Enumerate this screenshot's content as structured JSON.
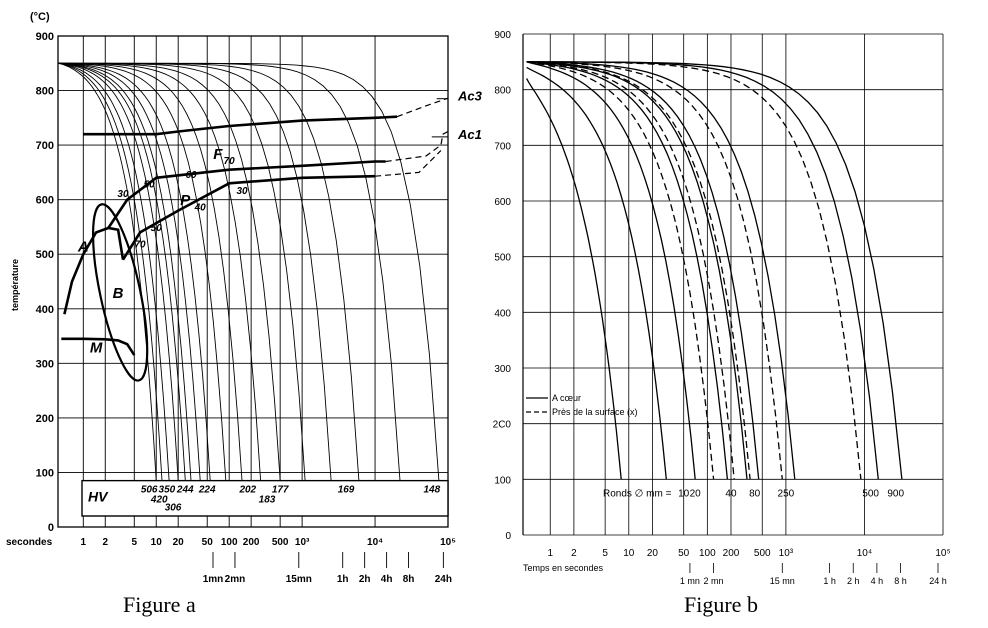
{
  "captions": {
    "a": "Figure a",
    "b": "Figure b"
  },
  "chart_data": [
    {
      "type": "line",
      "id": "figure-a",
      "unit_label": "(°C)",
      "ylabel": "température",
      "xlabel": "secondes",
      "x_scale": "log",
      "xlim": [
        0.45,
        100000
      ],
      "ylim": [
        0,
        900
      ],
      "y_ticks": [
        0,
        100,
        200,
        300,
        400,
        500,
        600,
        700,
        800,
        900
      ],
      "x_ticks": [
        {
          "v": 1,
          "t": "1"
        },
        {
          "v": 2,
          "t": "2"
        },
        {
          "v": 5,
          "t": "5"
        },
        {
          "v": 10,
          "t": "10"
        },
        {
          "v": 20,
          "t": "20"
        },
        {
          "v": 50,
          "t": "50"
        },
        {
          "v": 100,
          "t": "100"
        },
        {
          "v": 200,
          "t": "200"
        },
        {
          "v": 500,
          "t": "500"
        },
        {
          "v": 1000,
          "t": "10³"
        },
        {
          "v": 10000,
          "t": "10⁴"
        },
        {
          "v": 100000,
          "t": "10⁵"
        }
      ],
      "time_ticks": [
        {
          "v": 60,
          "t": "1mn"
        },
        {
          "v": 120,
          "t": "2mn"
        },
        {
          "v": 900,
          "t": "15mn"
        },
        {
          "v": 3600,
          "t": "1h"
        },
        {
          "v": 7200,
          "t": "2h"
        },
        {
          "v": 14400,
          "t": "4h"
        },
        {
          "v": 28800,
          "t": "8h"
        },
        {
          "v": 86400,
          "t": "24h"
        }
      ],
      "transformation_lines": [
        {
          "points": [
            [
              1,
              720
            ],
            [
              10,
              720
            ],
            [
              20,
              725
            ],
            [
              100,
              735
            ],
            [
              1000,
              745
            ],
            [
              10000,
              750
            ],
            [
              20000,
              752
            ]
          ],
          "dash": false
        },
        {
          "points": [
            [
              20000,
              752
            ],
            [
              50000,
              772
            ],
            [
              100000,
              786
            ]
          ],
          "dash": true
        },
        {
          "points": [
            [
              2.2,
              548
            ],
            [
              4,
              600
            ],
            [
              10,
              640
            ],
            [
              100,
              655
            ],
            [
              1000,
              662
            ],
            [
              10000,
              670
            ],
            [
              14000,
              670
            ]
          ],
          "dash": false
        },
        {
          "points": [
            [
              14000,
              670
            ],
            [
              50000,
              680
            ],
            [
              80000,
              700
            ],
            [
              85000,
              720
            ],
            [
              100000,
              725
            ]
          ],
          "dash": true
        },
        {
          "points": [
            [
              3.5,
              490
            ],
            [
              6,
              540
            ],
            [
              20,
              580
            ],
            [
              100,
              630
            ],
            [
              1000,
              640
            ],
            [
              10000,
              643
            ]
          ],
          "dash": false
        },
        {
          "points": [
            [
              10000,
              643
            ],
            [
              40000,
              650
            ],
            [
              80000,
              690
            ]
          ],
          "dash": true
        },
        {
          "points": [
            [
              0.55,
              390
            ],
            [
              0.7,
              450
            ],
            [
              1,
              500
            ],
            [
              1.5,
              540
            ],
            [
              2.2,
              548
            ],
            [
              3,
              545
            ],
            [
              3.5,
              490
            ]
          ],
          "dash": false
        },
        {
          "points": [
            [
              0.5,
              345
            ],
            [
              1,
              345
            ],
            [
              2,
              344
            ],
            [
              3,
              342
            ],
            [
              4,
              335
            ],
            [
              5,
              315
            ]
          ],
          "dash": false
        }
      ],
      "ac_marks": [
        {
          "points": [
            [
              70000,
              785
            ],
            [
              100000,
              785
            ]
          ],
          "label": "Ac3"
        },
        {
          "points": [
            [
              60000,
              715
            ],
            [
              100000,
              715
            ]
          ],
          "label": "Ac1"
        }
      ],
      "region_labels": [
        {
          "t": "F",
          "x": 70,
          "y": 675
        },
        {
          "t": "P",
          "x": 25,
          "y": 590
        },
        {
          "t": "A",
          "x": 1,
          "y": 505
        },
        {
          "t": "B",
          "x": 3,
          "y": 420
        },
        {
          "t": "M",
          "x": 1.5,
          "y": 320
        }
      ],
      "percent_labels": [
        {
          "t": "70",
          "x": 100,
          "y": 665
        },
        {
          "t": "60",
          "x": 30,
          "y": 640
        },
        {
          "t": "50",
          "x": 8,
          "y": 622
        },
        {
          "t": "30",
          "x": 3.5,
          "y": 605
        },
        {
          "t": "30",
          "x": 150,
          "y": 610
        },
        {
          "t": "40",
          "x": 40,
          "y": 580
        },
        {
          "t": "50",
          "x": 10,
          "y": 543
        },
        {
          "t": "70",
          "x": 6,
          "y": 512
        }
      ],
      "cooling_curves_end_s": [
        10,
        12,
        15,
        20,
        25,
        30,
        40,
        55,
        90,
        150,
        270,
        500,
        1100,
        2500,
        6000,
        22000,
        75000
      ],
      "cooling_start_temp": 850,
      "hardness_label": "HV",
      "hardness_values": [
        {
          "t": "506",
          "x": 8
        },
        {
          "t": "350",
          "x": 14
        },
        {
          "t": "420",
          "x": 11
        },
        {
          "t": "306",
          "x": 17
        },
        {
          "t": "244",
          "x": 25
        },
        {
          "t": "224",
          "x": 50
        },
        {
          "t": "202",
          "x": 180
        },
        {
          "t": "183",
          "x": 330
        },
        {
          "t": "177",
          "x": 500
        },
        {
          "t": "169",
          "x": 4000
        },
        {
          "t": "148",
          "x": 60000
        }
      ]
    },
    {
      "type": "line",
      "id": "figure-b",
      "xlabel": "Temps en secondes",
      "x_scale": "log",
      "xlim": [
        0.45,
        100000
      ],
      "ylim": [
        0,
        900
      ],
      "y_ticks": [
        0,
        100,
        200,
        300,
        400,
        500,
        600,
        700,
        800,
        900
      ],
      "y_tick_labels": [
        "0",
        "100",
        "2C0",
        "300",
        "400",
        "500",
        "600",
        "700",
        "800",
        "900"
      ],
      "x_ticks": [
        {
          "v": 1,
          "t": "1"
        },
        {
          "v": 2,
          "t": "2"
        },
        {
          "v": 5,
          "t": "5"
        },
        {
          "v": 10,
          "t": "10"
        },
        {
          "v": 20,
          "t": "20"
        },
        {
          "v": 50,
          "t": "50"
        },
        {
          "v": 100,
          "t": "100"
        },
        {
          "v": 200,
          "t": "200"
        },
        {
          "v": 500,
          "t": "500"
        },
        {
          "v": 1000,
          "t": "10³"
        },
        {
          "v": 10000,
          "t": "10⁴"
        },
        {
          "v": 100000,
          "t": "10⁵"
        }
      ],
      "time_ticks": [
        {
          "v": 60,
          "t": "1 mn"
        },
        {
          "v": 120,
          "t": "2 mn"
        },
        {
          "v": 900,
          "t": "15 mn"
        },
        {
          "v": 3600,
          "t": "1 h"
        },
        {
          "v": 7200,
          "t": "2 h"
        },
        {
          "v": 14400,
          "t": "4 h"
        },
        {
          "v": 28800,
          "t": "8 h"
        },
        {
          "v": 86400,
          "t": "24 h"
        }
      ],
      "legend": {
        "position": "lower-left",
        "entries": [
          {
            "label": "A cœur",
            "dash": false
          },
          {
            "label": "Près de la surface (x)",
            "dash": true
          }
        ]
      },
      "ronds_label": "Ronds  ∅ mm =",
      "diameters": [
        {
          "t": "10",
          "x": 50
        },
        {
          "t": "20",
          "x": 70
        },
        {
          "t": "40",
          "x": 200
        },
        {
          "t": "80",
          "x": 400
        },
        {
          "t": "250",
          "x": 1000
        },
        {
          "t": "500",
          "x": 12000
        },
        {
          "t": "900",
          "x": 25000
        }
      ],
      "series": [
        {
          "dash": false,
          "start": 820,
          "t100": 8
        },
        {
          "dash": false,
          "start": 840,
          "t100": 30
        },
        {
          "dash": false,
          "start": 850,
          "t100": 70
        },
        {
          "dash": true,
          "start": 850,
          "t100": 120
        },
        {
          "dash": false,
          "start": 850,
          "t100": 180
        },
        {
          "dash": true,
          "start": 850,
          "t100": 220
        },
        {
          "dash": false,
          "start": 850,
          "t100": 320
        },
        {
          "dash": true,
          "start": 850,
          "t100": 350
        },
        {
          "dash": false,
          "start": 850,
          "t100": 450
        },
        {
          "dash": true,
          "start": 850,
          "t100": 900
        },
        {
          "dash": false,
          "start": 850,
          "t100": 1300
        },
        {
          "dash": true,
          "start": 850,
          "t100": 9000
        },
        {
          "dash": false,
          "start": 850,
          "t100": 15000
        },
        {
          "dash": false,
          "start": 850,
          "t100": 30000
        }
      ]
    }
  ]
}
